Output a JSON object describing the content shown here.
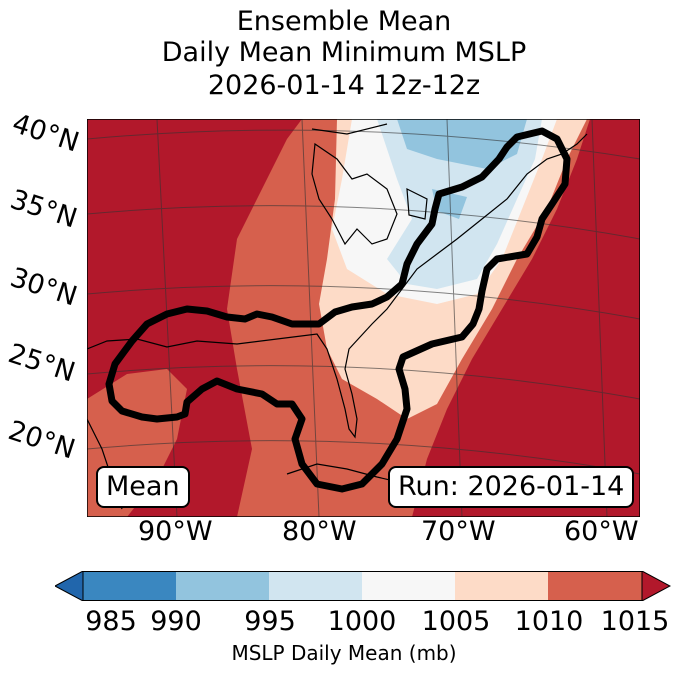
{
  "title": {
    "line1": "Ensemble Mean",
    "line2": "Daily Mean Minimum MSLP",
    "line3": "2026-01-14 12z-12z"
  },
  "lat_labels": [
    "40°N",
    "35°N",
    "30°N",
    "25°N",
    "20°N"
  ],
  "lon_labels": [
    "90°W",
    "80°W",
    "70°W",
    "60°W"
  ],
  "map": {
    "mean_label": "Mean",
    "run_label": "Run: 2026-01-14",
    "field": "MSLP daily mean",
    "colors": {
      "985-990": "#3a87c0",
      "990-995": "#92c4de",
      "995-1000": "#d1e5f0",
      "1000-1005": "#f7f7f7",
      "1005-1010": "#fddbc7",
      "1010-1015": "#d6604d",
      ">1015": "#b2182b"
    },
    "contour_color": "#000000"
  },
  "colorbar": {
    "ticks": [
      "985",
      "990",
      "995",
      "1000",
      "1005",
      "1010",
      "1015"
    ],
    "label": "MSLP Daily Mean (mb)",
    "extend": "both",
    "colors": [
      "#2166ac",
      "#3a87c0",
      "#92c4de",
      "#d1e5f0",
      "#f7f7f7",
      "#fddbc7",
      "#d6604d",
      "#b2182b"
    ]
  }
}
